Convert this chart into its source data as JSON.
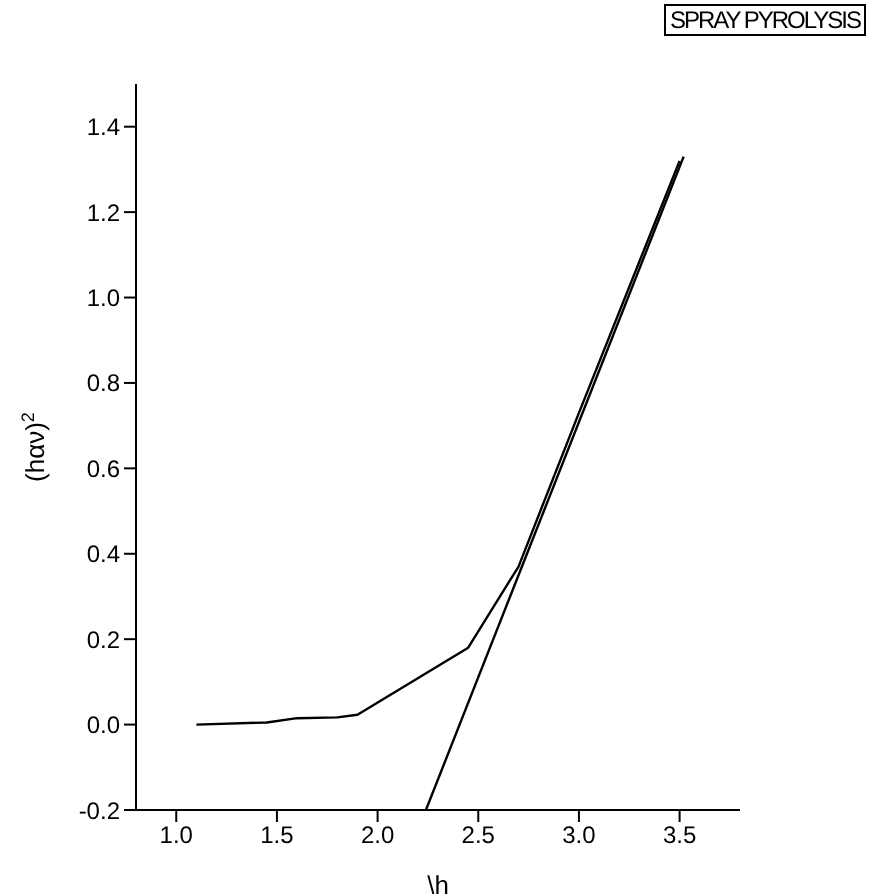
{
  "chart_data": {
    "type": "line",
    "xlabel": "\\h",
    "ylabel": "(hαν)$^{2}$",
    "annotations": [
      "SPRAY PYROLYSIS"
    ],
    "marker": "none",
    "line_style": "solid",
    "xlim": [
      0.8,
      3.8
    ],
    "ylim": [
      -0.2,
      1.5
    ],
    "xticks": [
      {
        "value": 1.0,
        "label": "1.0"
      },
      {
        "value": 1.5,
        "label": "1.5"
      },
      {
        "value": 2.0,
        "label": "2.0"
      },
      {
        "value": 2.5,
        "label": "2.5"
      },
      {
        "value": 3.0,
        "label": "3.0"
      },
      {
        "value": 3.5,
        "label": "3.5"
      }
    ],
    "yticks": [
      {
        "value": -0.2,
        "label": "-0.2"
      },
      {
        "value": 0.0,
        "label": "0.0"
      },
      {
        "value": 0.2,
        "label": "0.2"
      },
      {
        "value": 0.4,
        "label": "0.4"
      },
      {
        "value": 0.6,
        "label": "0.6"
      },
      {
        "value": 0.8,
        "label": "0.8"
      },
      {
        "value": 1.0,
        "label": "1.0"
      },
      {
        "value": 1.2,
        "label": "1.2"
      },
      {
        "value": 1.4,
        "label": "1.4"
      }
    ],
    "series": [
      {
        "color": "#000000",
        "x": [
          1.1,
          1.45,
          1.6,
          1.8,
          1.9,
          2.45,
          2.7,
          3.0,
          3.5
        ],
        "values": [
          0.0,
          0.005,
          0.015,
          0.017,
          0.023,
          0.18,
          0.37,
          0.73,
          1.32
        ]
      },
      {
        "type": "line",
        "color": "#000000",
        "x": [
          2.24,
          3.52
        ],
        "values": [
          -0.2,
          1.33
        ]
      }
    ]
  }
}
